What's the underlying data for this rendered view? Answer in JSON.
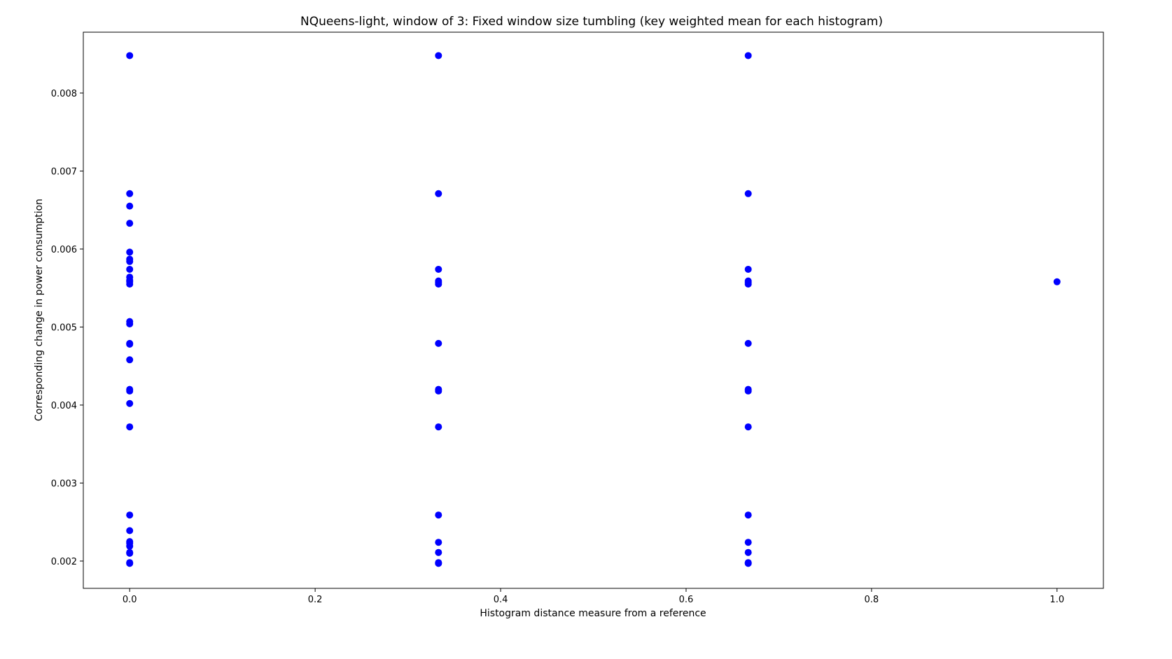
{
  "chart_data": {
    "type": "scatter",
    "title": "NQueens-light, window of 3: Fixed window size tumbling (key weighted mean for each histogram)",
    "xlabel": "Histogram distance measure from a reference",
    "ylabel": "Corresponding change in power consumption",
    "xlim": [
      -0.05,
      1.05
    ],
    "ylim": [
      0.00165,
      0.00878
    ],
    "xticks": [
      0.0,
      0.2,
      0.4,
      0.6,
      0.8,
      1.0
    ],
    "xtick_labels": [
      "0.0",
      "0.2",
      "0.4",
      "0.6",
      "0.8",
      "1.0"
    ],
    "yticks": [
      0.002,
      0.003,
      0.004,
      0.005,
      0.006,
      0.007,
      0.008
    ],
    "ytick_labels": [
      "0.002",
      "0.003",
      "0.004",
      "0.005",
      "0.006",
      "0.007",
      "0.008"
    ],
    "grid": false,
    "marker_color": "#0000ff",
    "series": [
      {
        "x": [
          0,
          0,
          0,
          0,
          0,
          0,
          0,
          0,
          0,
          0,
          0,
          0,
          0,
          0,
          0,
          0,
          0,
          0,
          0,
          0,
          0,
          0,
          0,
          0,
          0,
          0,
          0,
          0,
          0,
          0,
          0.333,
          0.333,
          0.333,
          0.333,
          0.333,
          0.333,
          0.333,
          0.333,
          0.333,
          0.333,
          0.333,
          0.333,
          0.333,
          0.333,
          0.333,
          0.667,
          0.667,
          0.667,
          0.667,
          0.667,
          0.667,
          0.667,
          0.667,
          0.667,
          0.667,
          0.667,
          0.667,
          0.667,
          0.667,
          0.667,
          1.0
        ],
        "y": [
          0.00848,
          0.00671,
          0.00655,
          0.00633,
          0.00596,
          0.00587,
          0.00574,
          0.00564,
          0.0056,
          0.00558,
          0.00555,
          0.00507,
          0.00504,
          0.00479,
          0.00478,
          0.00458,
          0.0042,
          0.00418,
          0.00402,
          0.00372,
          0.00259,
          0.00239,
          0.00225,
          0.00223,
          0.00219,
          0.00211,
          0.0021,
          0.00198,
          0.00197,
          0.00584,
          0.00848,
          0.00671,
          0.00574,
          0.00559,
          0.00557,
          0.00555,
          0.00479,
          0.0042,
          0.00418,
          0.00372,
          0.00259,
          0.00224,
          0.00211,
          0.00198,
          0.00197,
          0.00848,
          0.00671,
          0.00574,
          0.00559,
          0.00557,
          0.00555,
          0.00479,
          0.0042,
          0.00418,
          0.00372,
          0.00259,
          0.00224,
          0.00211,
          0.00198,
          0.00197,
          0.00558
        ]
      }
    ]
  }
}
